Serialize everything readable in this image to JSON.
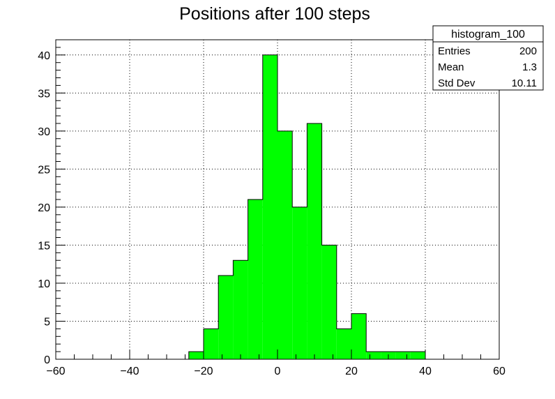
{
  "chart_data": {
    "type": "bar",
    "title": "Positions after 100 steps",
    "xlabel": "",
    "ylabel": "",
    "xlim": [
      -60,
      60
    ],
    "ylim": [
      0,
      42
    ],
    "grid": true,
    "bar_color": "#00ff00",
    "bin_edges": [
      -24,
      -20,
      -16,
      -12,
      -8,
      -4,
      0,
      4,
      8,
      12,
      16,
      20,
      24,
      28,
      32,
      36,
      40
    ],
    "values": [
      1,
      4,
      11,
      13,
      21,
      40,
      30,
      20,
      31,
      15,
      4,
      6,
      1,
      1,
      1,
      1
    ],
    "x_ticks": [
      -60,
      -40,
      -20,
      0,
      20,
      40,
      60
    ],
    "x_tick_labels": [
      "−60",
      "−40",
      "−20",
      "0",
      "20",
      "40",
      "60"
    ],
    "y_ticks": [
      0,
      5,
      10,
      15,
      20,
      25,
      30,
      35,
      40
    ],
    "y_tick_labels": [
      "0",
      "5",
      "10",
      "15",
      "20",
      "25",
      "30",
      "35",
      "40"
    ]
  },
  "stats_box": {
    "name": "histogram_100",
    "rows": [
      {
        "label": "Entries",
        "value": "200"
      },
      {
        "label": "Mean",
        "value": "1.3"
      },
      {
        "label": "Std Dev",
        "value": "10.11"
      }
    ]
  }
}
